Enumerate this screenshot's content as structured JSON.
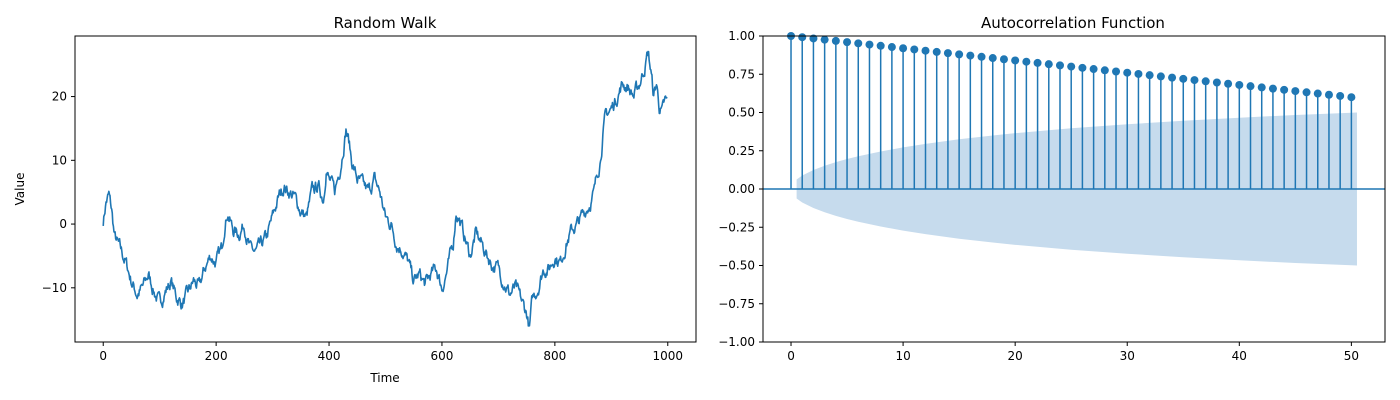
{
  "chart_data": [
    {
      "type": "line",
      "title": "Random Walk",
      "xlabel": "Time",
      "ylabel": "Value",
      "xlim": [
        -50,
        1050
      ],
      "ylim": [
        -18.5,
        29.5
      ],
      "xticks": [
        0,
        200,
        400,
        600,
        800,
        1000
      ],
      "xtick_labels": [
        "0",
        "200",
        "400",
        "600",
        "800",
        "1000"
      ],
      "yticks": [
        -10,
        0,
        10,
        20
      ],
      "ytick_labels": [
        "−10",
        "0",
        "10",
        "20"
      ],
      "grid": false,
      "line_color": "#1f77b4",
      "anchors": [
        [
          0,
          0.5
        ],
        [
          5,
          3.5
        ],
        [
          10,
          4.5
        ],
        [
          15,
          2
        ],
        [
          20,
          -2
        ],
        [
          30,
          -4
        ],
        [
          40,
          -6
        ],
        [
          50,
          -9
        ],
        [
          60,
          -11
        ],
        [
          70,
          -10
        ],
        [
          80,
          -8
        ],
        [
          90,
          -10.5
        ],
        [
          100,
          -12.5
        ],
        [
          110,
          -10.5
        ],
        [
          120,
          -9
        ],
        [
          130,
          -11.5
        ],
        [
          140,
          -12.5
        ],
        [
          150,
          -11
        ],
        [
          160,
          -9
        ],
        [
          170,
          -10
        ],
        [
          180,
          -7
        ],
        [
          190,
          -5
        ],
        [
          200,
          -6
        ],
        [
          210,
          -4
        ],
        [
          215,
          0
        ],
        [
          220,
          2
        ],
        [
          230,
          -1
        ],
        [
          240,
          -1.5
        ],
        [
          250,
          0
        ],
        [
          260,
          -4
        ],
        [
          270,
          -4.5
        ],
        [
          280,
          -3.5
        ],
        [
          290,
          -2
        ],
        [
          300,
          1
        ],
        [
          310,
          4
        ],
        [
          320,
          6
        ],
        [
          330,
          5
        ],
        [
          340,
          4
        ],
        [
          350,
          2
        ],
        [
          360,
          1
        ],
        [
          370,
          5
        ],
        [
          380,
          6
        ],
        [
          390,
          4
        ],
        [
          395,
          9
        ],
        [
          400,
          7
        ],
        [
          410,
          5
        ],
        [
          420,
          9
        ],
        [
          425,
          12
        ],
        [
          430,
          15
        ],
        [
          435,
          13
        ],
        [
          440,
          10
        ],
        [
          450,
          7
        ],
        [
          460,
          6
        ],
        [
          470,
          5
        ],
        [
          480,
          7
        ],
        [
          490,
          5
        ],
        [
          500,
          1
        ],
        [
          510,
          0
        ],
        [
          520,
          -3
        ],
        [
          530,
          -4
        ],
        [
          540,
          -6
        ],
        [
          550,
          -9
        ],
        [
          560,
          -8
        ],
        [
          570,
          -9.5
        ],
        [
          580,
          -8
        ],
        [
          590,
          -7
        ],
        [
          600,
          -10
        ],
        [
          610,
          -7
        ],
        [
          620,
          -3
        ],
        [
          625,
          2
        ],
        [
          630,
          1
        ],
        [
          640,
          -2
        ],
        [
          650,
          -5
        ],
        [
          660,
          -1.5
        ],
        [
          670,
          -3
        ],
        [
          680,
          -5
        ],
        [
          690,
          -6.5
        ],
        [
          700,
          -7
        ],
        [
          710,
          -9
        ],
        [
          720,
          -11
        ],
        [
          730,
          -10
        ],
        [
          740,
          -12
        ],
        [
          750,
          -14
        ],
        [
          755,
          -16.5
        ],
        [
          760,
          -12
        ],
        [
          770,
          -10
        ],
        [
          780,
          -7
        ],
        [
          790,
          -7
        ],
        [
          800,
          -5
        ],
        [
          810,
          -6
        ],
        [
          820,
          -3
        ],
        [
          830,
          -1
        ],
        [
          840,
          0
        ],
        [
          850,
          1.5
        ],
        [
          860,
          3
        ],
        [
          870,
          5
        ],
        [
          875,
          8
        ],
        [
          880,
          10
        ],
        [
          885,
          14
        ],
        [
          890,
          17
        ],
        [
          900,
          18
        ],
        [
          910,
          20
        ],
        [
          920,
          22
        ],
        [
          930,
          21.5
        ],
        [
          940,
          20
        ],
        [
          950,
          22
        ],
        [
          960,
          25
        ],
        [
          965,
          27
        ],
        [
          970,
          24
        ],
        [
          975,
          20
        ],
        [
          980,
          22
        ],
        [
          985,
          18.5
        ],
        [
          990,
          17.5
        ],
        [
          995,
          19
        ]
      ],
      "n_points": 1000,
      "seed": 7
    },
    {
      "type": "stem",
      "title": "Autocorrelation Function",
      "xlabel": "",
      "ylabel": "",
      "xlim": [
        -2.5,
        53
      ],
      "ylim": [
        -1.0,
        1.0
      ],
      "xticks": [
        0,
        10,
        20,
        30,
        40,
        50
      ],
      "xtick_labels": [
        "0",
        "10",
        "20",
        "30",
        "40",
        "50"
      ],
      "yticks": [
        -1.0,
        -0.75,
        -0.5,
        -0.25,
        0.0,
        0.25,
        0.5,
        0.75,
        1.0
      ],
      "ytick_labels": [
        "−1.00",
        "−0.75",
        "−0.50",
        "−0.25",
        "0.00",
        "0.25",
        "0.50",
        "0.75",
        "1.00"
      ],
      "grid": false,
      "stem_color": "#1f77b4",
      "band_color": "#c6dbed",
      "lags": [
        0,
        1,
        2,
        3,
        4,
        5,
        6,
        7,
        8,
        9,
        10,
        11,
        12,
        13,
        14,
        15,
        16,
        17,
        18,
        19,
        20,
        21,
        22,
        23,
        24,
        25,
        26,
        27,
        28,
        29,
        30,
        31,
        32,
        33,
        34,
        35,
        36,
        37,
        38,
        39,
        40,
        41,
        42,
        43,
        44,
        45,
        46,
        47,
        48,
        49,
        50
      ],
      "values": [
        1.0,
        0.992,
        0.984,
        0.976,
        0.968,
        0.96,
        0.952,
        0.944,
        0.936,
        0.928,
        0.92,
        0.912,
        0.904,
        0.896,
        0.888,
        0.88,
        0.872,
        0.864,
        0.856,
        0.848,
        0.84,
        0.832,
        0.824,
        0.816,
        0.808,
        0.8,
        0.792,
        0.784,
        0.776,
        0.768,
        0.76,
        0.752,
        0.744,
        0.736,
        0.728,
        0.72,
        0.712,
        0.704,
        0.696,
        0.688,
        0.68,
        0.672,
        0.664,
        0.656,
        0.648,
        0.64,
        0.632,
        0.624,
        0.616,
        0.608,
        0.6
      ],
      "conf_band": {
        "lags": [
          0.5,
          1,
          2,
          3,
          4,
          5,
          6,
          8,
          10,
          12,
          15,
          18,
          20,
          25,
          30,
          35,
          40,
          45,
          50,
          50.5
        ],
        "upper": [
          0.062,
          0.088,
          0.124,
          0.152,
          0.176,
          0.196,
          0.214,
          0.245,
          0.272,
          0.295,
          0.325,
          0.35,
          0.365,
          0.397,
          0.423,
          0.446,
          0.466,
          0.484,
          0.498,
          0.5
        ]
      }
    }
  ]
}
